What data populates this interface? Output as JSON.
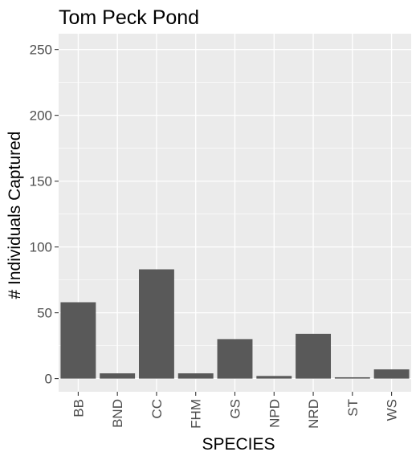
{
  "chart_data": {
    "type": "bar",
    "title": "Tom Peck Pond",
    "xlabel": "SPECIES",
    "ylabel": "# Individuals Captured",
    "categories": [
      "BB",
      "BND",
      "CC",
      "FHM",
      "GS",
      "NPD",
      "NRD",
      "ST",
      "WS"
    ],
    "values": [
      58,
      4,
      83,
      4,
      30,
      2,
      34,
      1,
      7
    ],
    "ylim": [
      -10,
      262
    ],
    "yticks": [
      0,
      50,
      100,
      150,
      200,
      250
    ],
    "grid": true,
    "colors": {
      "panel_background": "#EBEBEB",
      "grid_major": "#FFFFFF",
      "bar_fill": "#595959",
      "tick_text": "#4D4D4D",
      "title_text": "#000000"
    }
  }
}
